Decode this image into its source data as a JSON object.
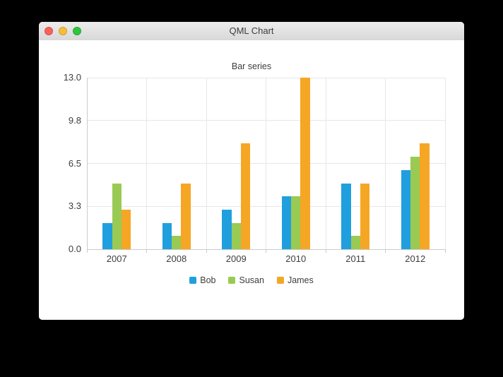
{
  "window": {
    "title": "QML Chart",
    "controls": [
      {
        "name": "close",
        "color": "#f9615a"
      },
      {
        "name": "minimize",
        "color": "#f7bd3a"
      },
      {
        "name": "zoom",
        "color": "#2dc63f"
      }
    ]
  },
  "chart_data": {
    "type": "bar",
    "title": "Bar series",
    "categories": [
      "2007",
      "2008",
      "2009",
      "2010",
      "2011",
      "2012"
    ],
    "series": [
      {
        "name": "Bob",
        "color": "#209fdf",
        "values": [
          2,
          2,
          3,
          4,
          5,
          6
        ]
      },
      {
        "name": "Susan",
        "color": "#99ca53",
        "values": [
          5,
          1,
          2,
          4,
          1,
          7
        ]
      },
      {
        "name": "James",
        "color": "#f6a625",
        "values": [
          3,
          5,
          8,
          13,
          5,
          8
        ]
      }
    ],
    "ylim": [
      0,
      13
    ],
    "y_ticks": [
      {
        "label": "0.0",
        "value": 0
      },
      {
        "label": "3.3",
        "value": 3.25
      },
      {
        "label": "6.5",
        "value": 6.5
      },
      {
        "label": "9.8",
        "value": 9.75
      },
      {
        "label": "13.0",
        "value": 13
      }
    ],
    "grid": true,
    "legend_position": "bottom"
  }
}
